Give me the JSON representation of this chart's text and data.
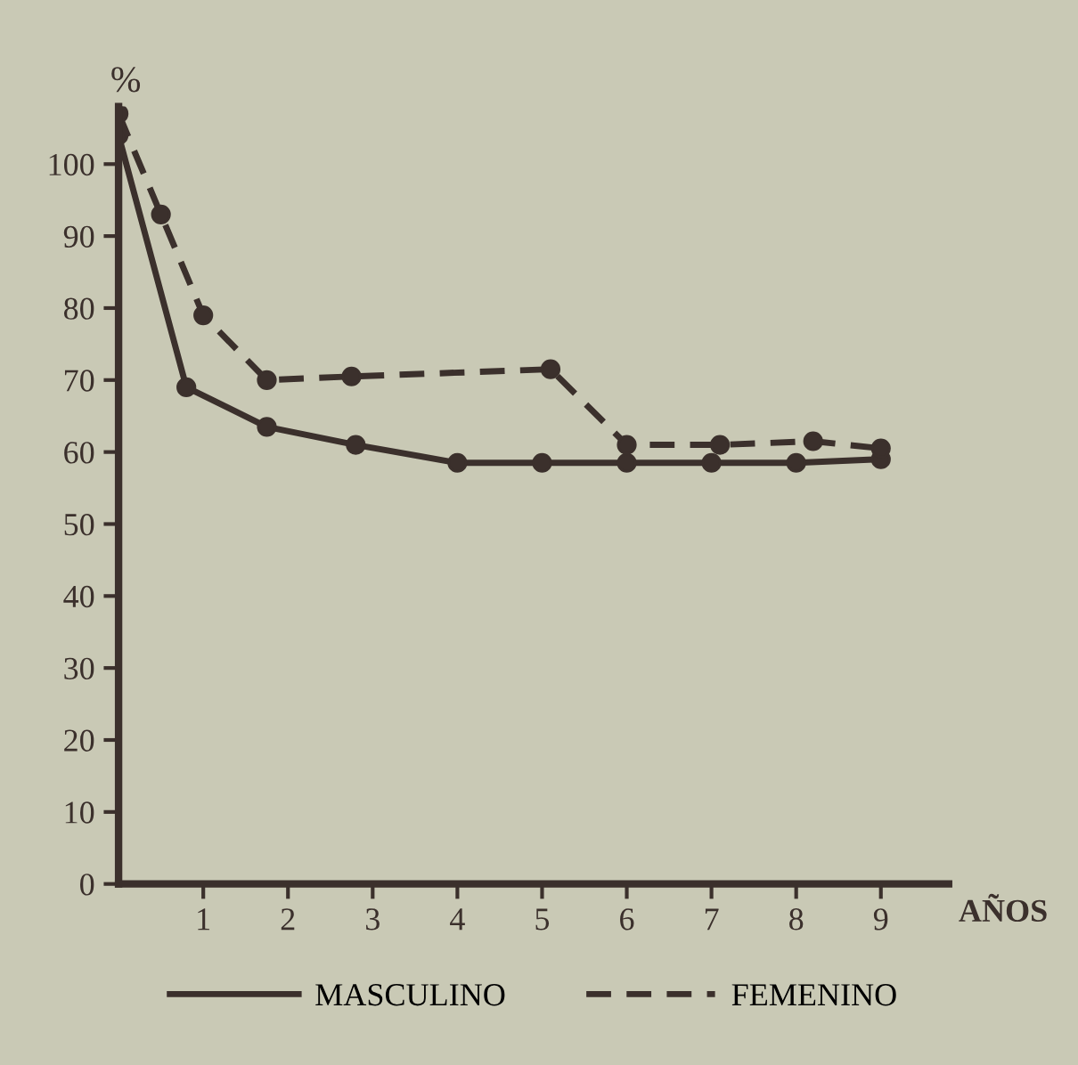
{
  "chart_data": {
    "type": "line",
    "ylabel": "%",
    "xlabel": "AÑOS",
    "xlim": [
      0,
      9.8
    ],
    "xticks": [
      1,
      2,
      3,
      4,
      5,
      6,
      7,
      8,
      9
    ],
    "ylim": [
      0,
      108
    ],
    "yticks": [
      0,
      10,
      20,
      30,
      40,
      50,
      60,
      70,
      80,
      90,
      100
    ],
    "series": [
      {
        "name": "MASCULINO",
        "color": "#3b302c",
        "line_style": "solid",
        "x": [
          0,
          0.8,
          1.75,
          2.8,
          4,
          5,
          6,
          7,
          8,
          9
        ],
        "values": [
          104,
          69,
          63.5,
          61,
          58.5,
          58.5,
          58.5,
          58.5,
          58.5,
          59
        ]
      },
      {
        "name": "FEMENINO",
        "color": "#3b302c",
        "line_style": "dashed",
        "x": [
          0,
          0.5,
          1,
          1.75,
          2.75,
          5.1,
          6,
          7.1,
          8.2,
          9
        ],
        "values": [
          107,
          93,
          79,
          70,
          70.5,
          71.5,
          61,
          61,
          61.5,
          60.5
        ]
      }
    ],
    "marker": "circle",
    "grid": false,
    "legend": "bottom"
  }
}
